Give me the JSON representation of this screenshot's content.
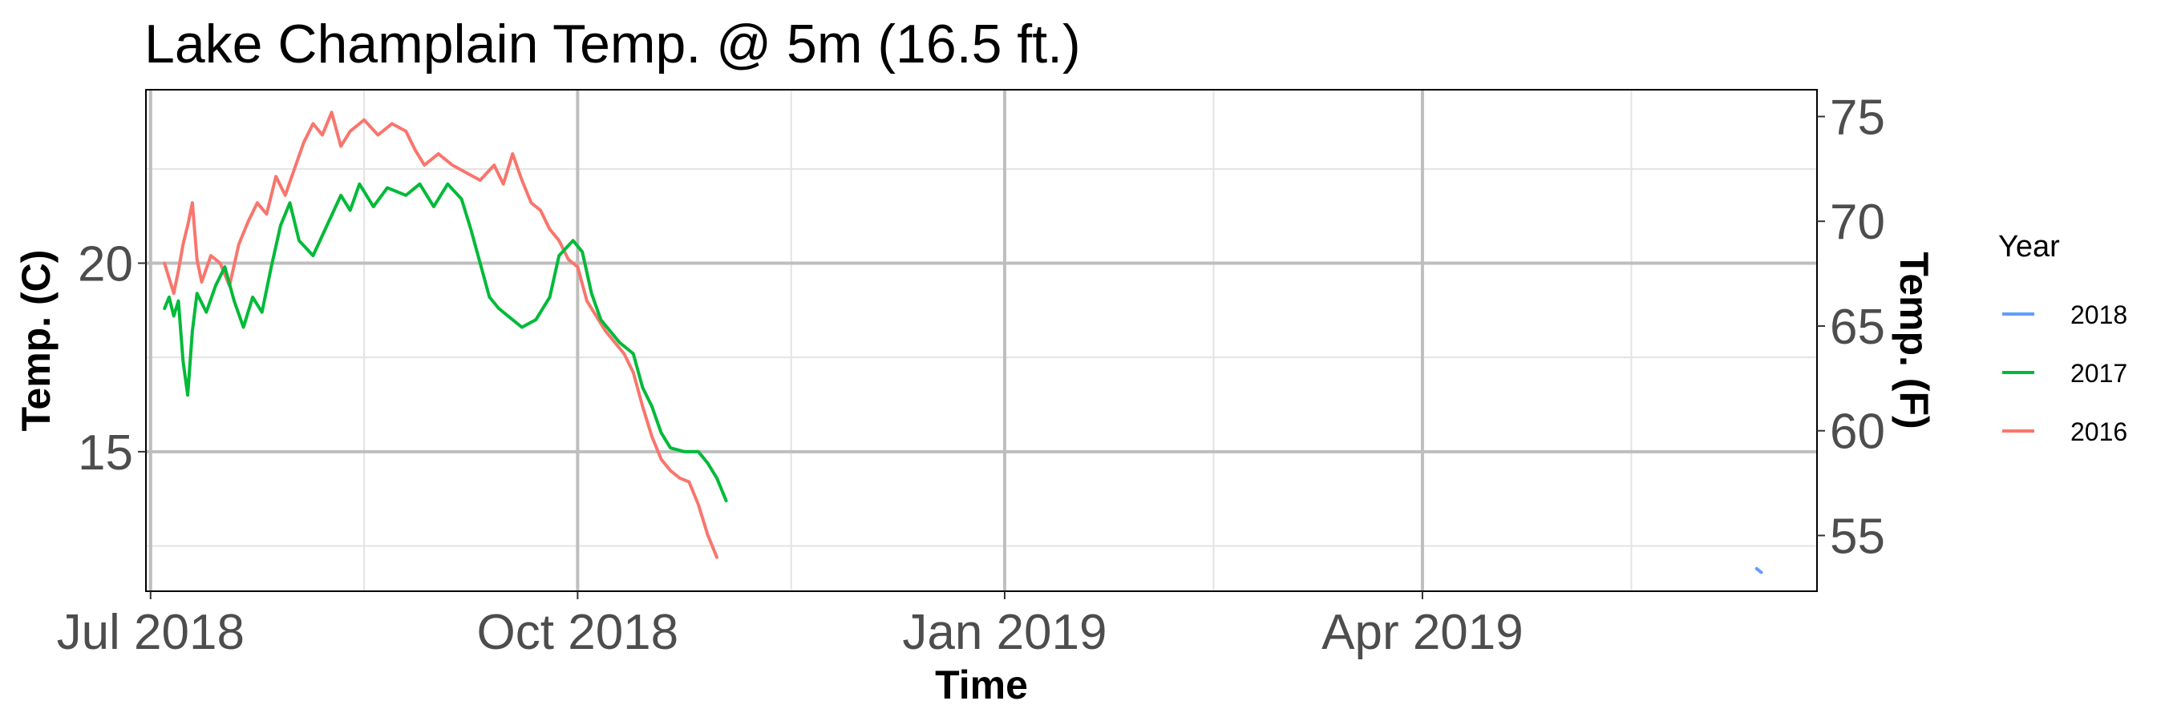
{
  "chart_data": {
    "type": "line",
    "title": "Lake Champlain Temp. @ 5m (16.5 ft.)",
    "xlabel": "Time",
    "ylabel": "Temp. (C)",
    "ylabel_right": "Temp. (F)",
    "x_range": [
      "2018-06-30",
      "2019-06-25"
    ],
    "ylim": [
      11.3,
      24.6
    ],
    "x_ticks": [
      {
        "date": "2018-07-01",
        "label": "Jul 2018"
      },
      {
        "date": "2018-10-01",
        "label": "Oct 2018"
      },
      {
        "date": "2019-01-01",
        "label": "Jan 2019"
      },
      {
        "date": "2019-04-01",
        "label": "Apr 2019"
      }
    ],
    "x_minor_ticks": [
      "2018-08-16",
      "2018-11-16",
      "2019-02-15",
      "2019-05-16"
    ],
    "y_ticks": [
      15,
      20
    ],
    "y_minor_ticks": [
      12.5,
      17.5,
      22.5
    ],
    "y_ticks_right": [
      55,
      60,
      65,
      70,
      75
    ],
    "grid": true,
    "legend": {
      "title": "Year",
      "placement": "right",
      "entries": [
        "2018",
        "2017",
        "2016"
      ]
    },
    "series": [
      {
        "name": "2018",
        "color": "#619CFF",
        "points": [
          [
            "2019-06-12",
            11.9
          ],
          [
            "2019-06-13",
            11.8
          ]
        ]
      },
      {
        "name": "2017",
        "color": "#00BA38",
        "points": [
          [
            "2018-07-04",
            18.8
          ],
          [
            "2018-07-05",
            19.1
          ],
          [
            "2018-07-06",
            18.6
          ],
          [
            "2018-07-07",
            19.0
          ],
          [
            "2018-07-08",
            17.4
          ],
          [
            "2018-07-09",
            16.5
          ],
          [
            "2018-07-10",
            18.2
          ],
          [
            "2018-07-11",
            19.2
          ],
          [
            "2018-07-13",
            18.7
          ],
          [
            "2018-07-15",
            19.4
          ],
          [
            "2018-07-17",
            19.9
          ],
          [
            "2018-07-19",
            19.0
          ],
          [
            "2018-07-21",
            18.3
          ],
          [
            "2018-07-23",
            19.1
          ],
          [
            "2018-07-25",
            18.7
          ],
          [
            "2018-07-27",
            19.9
          ],
          [
            "2018-07-29",
            21.0
          ],
          [
            "2018-07-31",
            21.6
          ],
          [
            "2018-08-02",
            20.6
          ],
          [
            "2018-08-05",
            20.2
          ],
          [
            "2018-08-08",
            21.0
          ],
          [
            "2018-08-11",
            21.8
          ],
          [
            "2018-08-13",
            21.4
          ],
          [
            "2018-08-15",
            22.1
          ],
          [
            "2018-08-18",
            21.5
          ],
          [
            "2018-08-21",
            22.0
          ],
          [
            "2018-08-25",
            21.8
          ],
          [
            "2018-08-28",
            22.1
          ],
          [
            "2018-08-31",
            21.5
          ],
          [
            "2018-09-03",
            22.1
          ],
          [
            "2018-09-06",
            21.7
          ],
          [
            "2018-09-08",
            20.9
          ],
          [
            "2018-09-10",
            20.0
          ],
          [
            "2018-09-12",
            19.1
          ],
          [
            "2018-09-14",
            18.8
          ],
          [
            "2018-09-16",
            18.6
          ],
          [
            "2018-09-19",
            18.3
          ],
          [
            "2018-09-22",
            18.5
          ],
          [
            "2018-09-25",
            19.1
          ],
          [
            "2018-09-27",
            20.2
          ],
          [
            "2018-09-30",
            20.6
          ],
          [
            "2018-10-02",
            20.3
          ],
          [
            "2018-10-04",
            19.2
          ],
          [
            "2018-10-06",
            18.5
          ],
          [
            "2018-10-08",
            18.2
          ],
          [
            "2018-10-10",
            17.9
          ],
          [
            "2018-10-13",
            17.6
          ],
          [
            "2018-10-15",
            16.7
          ],
          [
            "2018-10-17",
            16.2
          ],
          [
            "2018-10-19",
            15.5
          ],
          [
            "2018-10-21",
            15.1
          ],
          [
            "2018-10-24",
            15.0
          ],
          [
            "2018-10-27",
            15.0
          ],
          [
            "2018-10-29",
            14.7
          ],
          [
            "2018-10-31",
            14.3
          ],
          [
            "2018-11-02",
            13.7
          ]
        ]
      },
      {
        "name": "2016",
        "color": "#F8766D",
        "points": [
          [
            "2018-07-04",
            20.0
          ],
          [
            "2018-07-05",
            19.6
          ],
          [
            "2018-07-06",
            19.2
          ],
          [
            "2018-07-07",
            19.8
          ],
          [
            "2018-07-08",
            20.5
          ],
          [
            "2018-07-09",
            21.0
          ],
          [
            "2018-07-10",
            21.6
          ],
          [
            "2018-07-11",
            20.1
          ],
          [
            "2018-07-12",
            19.5
          ],
          [
            "2018-07-14",
            20.2
          ],
          [
            "2018-07-16",
            20.0
          ],
          [
            "2018-07-18",
            19.4
          ],
          [
            "2018-07-20",
            20.5
          ],
          [
            "2018-07-22",
            21.1
          ],
          [
            "2018-07-24",
            21.6
          ],
          [
            "2018-07-26",
            21.3
          ],
          [
            "2018-07-28",
            22.3
          ],
          [
            "2018-07-30",
            21.8
          ],
          [
            "2018-08-01",
            22.5
          ],
          [
            "2018-08-03",
            23.2
          ],
          [
            "2018-08-05",
            23.7
          ],
          [
            "2018-08-07",
            23.4
          ],
          [
            "2018-08-09",
            24.0
          ],
          [
            "2018-08-11",
            23.1
          ],
          [
            "2018-08-13",
            23.5
          ],
          [
            "2018-08-16",
            23.8
          ],
          [
            "2018-08-19",
            23.4
          ],
          [
            "2018-08-22",
            23.7
          ],
          [
            "2018-08-25",
            23.5
          ],
          [
            "2018-08-27",
            23.0
          ],
          [
            "2018-08-29",
            22.6
          ],
          [
            "2018-09-01",
            22.9
          ],
          [
            "2018-09-04",
            22.6
          ],
          [
            "2018-09-07",
            22.4
          ],
          [
            "2018-09-10",
            22.2
          ],
          [
            "2018-09-13",
            22.6
          ],
          [
            "2018-09-15",
            22.1
          ],
          [
            "2018-09-17",
            22.9
          ],
          [
            "2018-09-19",
            22.2
          ],
          [
            "2018-09-21",
            21.6
          ],
          [
            "2018-09-23",
            21.4
          ],
          [
            "2018-09-25",
            20.9
          ],
          [
            "2018-09-27",
            20.6
          ],
          [
            "2018-09-29",
            20.1
          ],
          [
            "2018-10-01",
            19.9
          ],
          [
            "2018-10-03",
            19.0
          ],
          [
            "2018-10-05",
            18.6
          ],
          [
            "2018-10-07",
            18.2
          ],
          [
            "2018-10-09",
            17.9
          ],
          [
            "2018-10-11",
            17.6
          ],
          [
            "2018-10-13",
            17.1
          ],
          [
            "2018-10-15",
            16.2
          ],
          [
            "2018-10-17",
            15.4
          ],
          [
            "2018-10-19",
            14.8
          ],
          [
            "2018-10-21",
            14.5
          ],
          [
            "2018-10-23",
            14.3
          ],
          [
            "2018-10-25",
            14.2
          ],
          [
            "2018-10-27",
            13.6
          ],
          [
            "2018-10-29",
            12.8
          ],
          [
            "2018-10-31",
            12.2
          ]
        ]
      }
    ]
  }
}
